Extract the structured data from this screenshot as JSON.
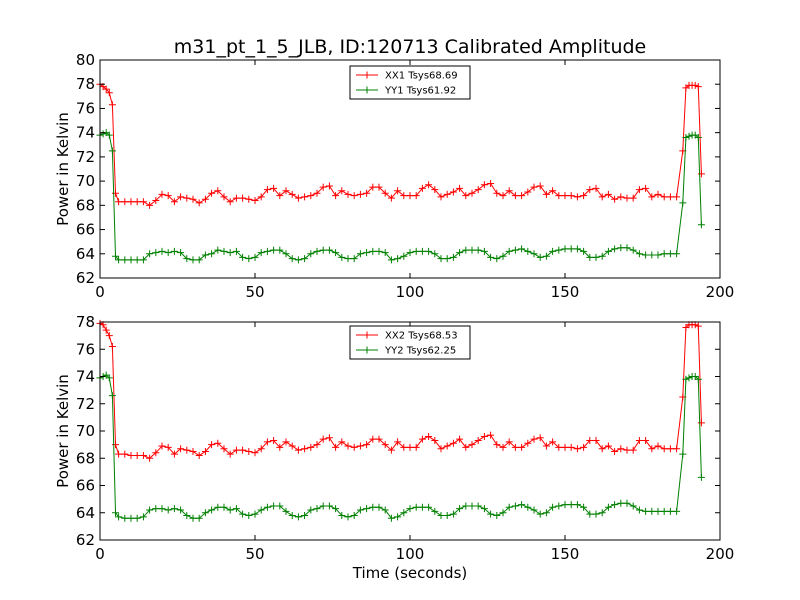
{
  "chart_data": {
    "type": "line",
    "title": "m31_pt_1_5_JLB, ID:120713 Calibrated Amplitude",
    "xlabel": "Time (seconds)",
    "subplots": [
      {
        "ylabel": "Power in Kelvin",
        "xlim": [
          0,
          200
        ],
        "ylim": [
          62,
          80
        ],
        "xticks": [
          0,
          50,
          100,
          150,
          200
        ],
        "yticks": [
          62,
          64,
          66,
          68,
          70,
          72,
          74,
          76,
          78,
          80
        ],
        "legend_position": "top-center",
        "series": [
          {
            "name": "XX1 Tsys68.69",
            "color": "#ff0000",
            "x": [
              0,
              1,
              2,
              3,
              4,
              5,
              6,
              8,
              10,
              12,
              14,
              16,
              18,
              20,
              22,
              24,
              26,
              28,
              30,
              32,
              34,
              36,
              38,
              40,
              42,
              44,
              46,
              48,
              50,
              52,
              54,
              56,
              58,
              60,
              62,
              64,
              66,
              68,
              70,
              72,
              74,
              76,
              78,
              80,
              82,
              84,
              86,
              88,
              90,
              92,
              94,
              96,
              98,
              100,
              102,
              104,
              106,
              108,
              110,
              112,
              114,
              116,
              118,
              120,
              122,
              124,
              126,
              128,
              130,
              132,
              134,
              136,
              138,
              140,
              142,
              144,
              146,
              148,
              150,
              152,
              154,
              156,
              158,
              160,
              162,
              164,
              166,
              168,
              170,
              172,
              174,
              176,
              178,
              180,
              182,
              184,
              186,
              188,
              189,
              190,
              191,
              192,
              193,
              194
            ],
            "values": [
              78.0,
              77.8,
              77.6,
              77.3,
              76.3,
              69.0,
              68.3,
              68.3,
              68.3,
              68.3,
              68.3,
              68.0,
              68.4,
              68.9,
              68.8,
              68.3,
              68.7,
              68.6,
              68.5,
              68.2,
              68.5,
              69.0,
              69.2,
              68.7,
              68.3,
              68.6,
              68.6,
              68.5,
              68.4,
              68.7,
              69.3,
              69.4,
              68.8,
              69.2,
              68.9,
              68.6,
              68.7,
              68.8,
              69.0,
              69.5,
              69.6,
              68.8,
              69.2,
              68.9,
              68.8,
              68.9,
              69.0,
              69.5,
              69.5,
              69.0,
              68.6,
              69.2,
              68.8,
              68.8,
              68.8,
              69.4,
              69.7,
              69.3,
              68.7,
              68.9,
              69.1,
              69.4,
              68.8,
              69.0,
              69.3,
              69.7,
              69.8,
              69.0,
              68.8,
              69.2,
              68.8,
              68.8,
              69.1,
              69.5,
              69.6,
              68.9,
              69.2,
              68.8,
              68.8,
              68.8,
              68.7,
              68.8,
              69.3,
              69.4,
              68.7,
              68.9,
              68.5,
              68.7,
              68.6,
              68.6,
              69.3,
              69.4,
              68.7,
              68.9,
              68.7,
              68.7,
              68.7,
              72.5,
              77.7,
              77.9,
              77.9,
              77.9,
              77.8,
              70.6
            ]
          },
          {
            "name": "YY1 Tsys61.92",
            "color": "#008000",
            "x": [
              0,
              1,
              2,
              3,
              4,
              5,
              6,
              8,
              10,
              12,
              14,
              16,
              18,
              20,
              22,
              24,
              26,
              28,
              30,
              32,
              34,
              36,
              38,
              40,
              42,
              44,
              46,
              48,
              50,
              52,
              54,
              56,
              58,
              60,
              62,
              64,
              66,
              68,
              70,
              72,
              74,
              76,
              78,
              80,
              82,
              84,
              86,
              88,
              90,
              92,
              94,
              96,
              98,
              100,
              102,
              104,
              106,
              108,
              110,
              112,
              114,
              116,
              118,
              120,
              122,
              124,
              126,
              128,
              130,
              132,
              134,
              136,
              138,
              140,
              142,
              144,
              146,
              148,
              150,
              152,
              154,
              156,
              158,
              160,
              162,
              164,
              166,
              168,
              170,
              172,
              174,
              176,
              178,
              180,
              182,
              184,
              186,
              188,
              189,
              190,
              191,
              192,
              193,
              194
            ],
            "values": [
              73.8,
              73.9,
              74.0,
              73.8,
              72.5,
              63.8,
              63.5,
              63.5,
              63.5,
              63.5,
              63.5,
              64.0,
              64.1,
              64.2,
              64.1,
              64.2,
              64.1,
              63.6,
              63.5,
              63.5,
              63.9,
              64.0,
              64.3,
              64.2,
              64.1,
              64.2,
              63.7,
              63.6,
              63.7,
              64.1,
              64.2,
              64.3,
              64.3,
              64.0,
              63.6,
              63.5,
              63.6,
              64.0,
              64.2,
              64.3,
              64.3,
              64.1,
              63.7,
              63.6,
              63.6,
              64.0,
              64.1,
              64.2,
              64.2,
              64.1,
              63.5,
              63.6,
              63.8,
              64.1,
              64.2,
              64.2,
              64.2,
              64.0,
              63.6,
              63.6,
              63.7,
              64.1,
              64.3,
              64.3,
              64.3,
              64.2,
              63.7,
              63.6,
              63.8,
              64.2,
              64.3,
              64.4,
              64.2,
              64.0,
              63.7,
              63.8,
              64.2,
              64.3,
              64.4,
              64.4,
              64.4,
              64.2,
              63.7,
              63.7,
              63.8,
              64.2,
              64.4,
              64.5,
              64.5,
              64.3,
              64.0,
              63.9,
              63.9,
              63.9,
              64.0,
              64.0,
              64.0,
              68.2,
              73.6,
              73.7,
              73.8,
              73.8,
              73.6,
              66.4
            ]
          }
        ]
      },
      {
        "ylabel": "Power in Kelvin",
        "xlim": [
          0,
          200
        ],
        "ylim": [
          62,
          78
        ],
        "xticks": [
          0,
          50,
          100,
          150,
          200
        ],
        "yticks": [
          62,
          64,
          66,
          68,
          70,
          72,
          74,
          76,
          78
        ],
        "legend_position": "top-center",
        "series": [
          {
            "name": "XX2 Tsys68.53",
            "color": "#ff0000",
            "x": [
              0,
              1,
              2,
              3,
              4,
              5,
              6,
              8,
              10,
              12,
              14,
              16,
              18,
              20,
              22,
              24,
              26,
              28,
              30,
              32,
              34,
              36,
              38,
              40,
              42,
              44,
              46,
              48,
              50,
              52,
              54,
              56,
              58,
              60,
              62,
              64,
              66,
              68,
              70,
              72,
              74,
              76,
              78,
              80,
              82,
              84,
              86,
              88,
              90,
              92,
              94,
              96,
              98,
              100,
              102,
              104,
              106,
              108,
              110,
              112,
              114,
              116,
              118,
              120,
              122,
              124,
              126,
              128,
              130,
              132,
              134,
              136,
              138,
              140,
              142,
              144,
              146,
              148,
              150,
              152,
              154,
              156,
              158,
              160,
              162,
              164,
              166,
              168,
              170,
              172,
              174,
              176,
              178,
              180,
              182,
              184,
              186,
              188,
              189,
              190,
              191,
              192,
              193,
              194
            ],
            "values": [
              77.9,
              77.8,
              77.4,
              77.0,
              76.2,
              69.0,
              68.3,
              68.3,
              68.2,
              68.2,
              68.2,
              68.0,
              68.4,
              68.9,
              68.8,
              68.3,
              68.7,
              68.6,
              68.5,
              68.2,
              68.5,
              69.0,
              69.1,
              68.7,
              68.3,
              68.6,
              68.6,
              68.5,
              68.4,
              68.7,
              69.2,
              69.3,
              68.8,
              69.2,
              68.9,
              68.6,
              68.7,
              68.8,
              69.0,
              69.4,
              69.5,
              68.8,
              69.2,
              68.9,
              68.8,
              68.9,
              69.0,
              69.4,
              69.4,
              69.0,
              68.6,
              69.2,
              68.8,
              68.8,
              68.8,
              69.4,
              69.6,
              69.3,
              68.7,
              68.9,
              69.1,
              69.4,
              68.8,
              69.0,
              69.3,
              69.6,
              69.7,
              69.0,
              68.8,
              69.2,
              68.8,
              68.8,
              69.1,
              69.4,
              69.5,
              68.9,
              69.2,
              68.8,
              68.8,
              68.8,
              68.7,
              68.8,
              69.3,
              69.3,
              68.7,
              68.9,
              68.5,
              68.7,
              68.6,
              68.6,
              69.3,
              69.3,
              68.7,
              68.9,
              68.7,
              68.7,
              68.7,
              72.5,
              77.6,
              77.8,
              77.8,
              77.8,
              77.7,
              70.6
            ]
          },
          {
            "name": "YY2 Tsys62.25",
            "color": "#008000",
            "x": [
              0,
              1,
              2,
              3,
              4,
              5,
              6,
              8,
              10,
              12,
              14,
              16,
              18,
              20,
              22,
              24,
              26,
              28,
              30,
              32,
              34,
              36,
              38,
              40,
              42,
              44,
              46,
              48,
              50,
              52,
              54,
              56,
              58,
              60,
              62,
              64,
              66,
              68,
              70,
              72,
              74,
              76,
              78,
              80,
              82,
              84,
              86,
              88,
              90,
              92,
              94,
              96,
              98,
              100,
              102,
              104,
              106,
              108,
              110,
              112,
              114,
              116,
              118,
              120,
              122,
              124,
              126,
              128,
              130,
              132,
              134,
              136,
              138,
              140,
              142,
              144,
              146,
              148,
              150,
              152,
              154,
              156,
              158,
              160,
              162,
              164,
              166,
              168,
              170,
              172,
              174,
              176,
              178,
              180,
              182,
              184,
              186,
              188,
              189,
              190,
              191,
              192,
              193,
              194
            ],
            "values": [
              73.9,
              74.0,
              74.1,
              73.9,
              72.6,
              64.0,
              63.7,
              63.6,
              63.6,
              63.6,
              63.7,
              64.2,
              64.3,
              64.3,
              64.2,
              64.3,
              64.2,
              63.8,
              63.6,
              63.6,
              64.0,
              64.2,
              64.4,
              64.4,
              64.2,
              64.3,
              63.9,
              63.8,
              63.9,
              64.2,
              64.4,
              64.5,
              64.5,
              64.1,
              63.8,
              63.7,
              63.8,
              64.2,
              64.3,
              64.5,
              64.5,
              64.3,
              63.8,
              63.7,
              63.8,
              64.2,
              64.3,
              64.4,
              64.4,
              64.2,
              63.6,
              63.7,
              64.0,
              64.3,
              64.4,
              64.4,
              64.4,
              64.1,
              63.8,
              63.8,
              63.9,
              64.3,
              64.5,
              64.5,
              64.5,
              64.3,
              63.9,
              63.8,
              64.0,
              64.4,
              64.5,
              64.6,
              64.4,
              64.2,
              63.9,
              64.0,
              64.4,
              64.5,
              64.6,
              64.6,
              64.6,
              64.4,
              63.9,
              63.9,
              64.0,
              64.4,
              64.6,
              64.7,
              64.7,
              64.5,
              64.2,
              64.1,
              64.1,
              64.1,
              64.1,
              64.1,
              64.1,
              68.3,
              73.8,
              73.9,
              74.0,
              74.0,
              73.8,
              66.6
            ]
          }
        ]
      }
    ]
  }
}
